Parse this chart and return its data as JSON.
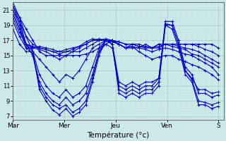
{
  "xlabel": "Température (°c)",
  "background_color": "#cce8e8",
  "grid_color_major": "#aacccc",
  "grid_color_minor": "#bbdddd",
  "line_color": "#0000cc",
  "marker": "+",
  "markersize": 3.5,
  "linewidth": 0.8,
  "ylim": [
    6.5,
    22.0
  ],
  "xlim": [
    0,
    4.1
  ],
  "yticks": [
    7,
    9,
    11,
    13,
    15,
    17,
    19,
    21
  ],
  "x_day_labels": [
    "Mar",
    "Mer",
    "Jeu",
    "Ven",
    "S"
  ],
  "x_day_positions": [
    0.0,
    1.0,
    2.0,
    3.0,
    4.0
  ],
  "series": [
    [
      21.5,
      20.0,
      18.5,
      17.0,
      15.5,
      15.0,
      15.0,
      15.0,
      15.0,
      15.0,
      15.0,
      15.2,
      15.5,
      16.0,
      16.5,
      17.0,
      16.5,
      16.0,
      16.0,
      16.0,
      16.5,
      16.0,
      16.5,
      16.5,
      16.5,
      16.5,
      16.5,
      16.5,
      16.5,
      16.5,
      16.5,
      16.0
    ],
    [
      21.0,
      19.5,
      17.5,
      16.5,
      16.0,
      15.8,
      15.5,
      15.5,
      15.5,
      15.5,
      15.5,
      16.0,
      16.5,
      17.0,
      17.2,
      17.0,
      16.5,
      16.0,
      16.5,
      16.2,
      16.2,
      16.0,
      16.5,
      16.5,
      16.5,
      16.5,
      16.5,
      16.5,
      16.2,
      15.8,
      15.5,
      15.0
    ],
    [
      20.5,
      18.5,
      16.5,
      16.0,
      16.2,
      16.0,
      15.8,
      15.5,
      15.8,
      16.0,
      16.2,
      16.5,
      17.0,
      17.2,
      17.0,
      17.0,
      16.8,
      16.5,
      16.5,
      16.2,
      16.0,
      16.0,
      16.2,
      16.5,
      16.5,
      16.2,
      16.0,
      15.8,
      15.5,
      15.0,
      14.5,
      14.0
    ],
    [
      20.0,
      18.0,
      16.5,
      16.2,
      16.0,
      15.8,
      15.5,
      15.2,
      15.5,
      15.8,
      16.2,
      16.8,
      17.2,
      17.0,
      17.0,
      17.0,
      16.8,
      16.5,
      16.5,
      16.5,
      16.2,
      16.0,
      16.0,
      16.5,
      16.2,
      16.0,
      15.8,
      15.2,
      15.0,
      14.5,
      14.0,
      13.5
    ],
    [
      19.5,
      17.5,
      16.0,
      16.0,
      15.8,
      15.5,
      15.0,
      14.5,
      15.0,
      15.5,
      16.0,
      16.5,
      17.0,
      17.0,
      17.0,
      16.8,
      16.5,
      16.0,
      16.2,
      16.0,
      15.8,
      15.5,
      15.8,
      16.0,
      15.8,
      15.5,
      15.2,
      15.0,
      14.5,
      14.0,
      13.5,
      12.5
    ],
    [
      18.5,
      16.5,
      15.5,
      15.5,
      14.5,
      13.5,
      12.5,
      11.5,
      12.5,
      12.0,
      13.0,
      14.5,
      16.0,
      16.5,
      17.0,
      16.8,
      16.5,
      16.0,
      16.2,
      15.5,
      15.0,
      14.5,
      14.8,
      15.0,
      15.0,
      14.5,
      14.2,
      13.8,
      13.5,
      13.0,
      12.5,
      11.8
    ],
    [
      21.0,
      19.0,
      16.5,
      15.5,
      12.5,
      11.0,
      10.0,
      9.5,
      10.5,
      9.5,
      10.0,
      11.0,
      13.5,
      16.0,
      17.0,
      16.5,
      11.5,
      11.0,
      11.5,
      11.0,
      11.5,
      11.5,
      12.0,
      19.0,
      19.0,
      16.5,
      13.0,
      12.0,
      10.5,
      10.5,
      10.0,
      10.2
    ],
    [
      20.5,
      18.5,
      16.0,
      15.2,
      11.5,
      10.0,
      9.0,
      8.5,
      9.5,
      8.5,
      9.0,
      10.0,
      12.5,
      15.5,
      16.5,
      16.0,
      11.0,
      10.5,
      11.0,
      10.5,
      11.0,
      11.0,
      12.0,
      19.5,
      19.5,
      17.0,
      13.5,
      12.5,
      10.0,
      10.0,
      9.5,
      9.8
    ],
    [
      21.5,
      19.5,
      16.5,
      15.0,
      11.0,
      9.5,
      8.5,
      8.0,
      8.5,
      7.5,
      8.0,
      9.0,
      12.0,
      15.5,
      17.0,
      16.5,
      10.5,
      10.0,
      10.5,
      10.0,
      10.5,
      10.5,
      11.5,
      19.2,
      19.0,
      16.5,
      13.0,
      11.8,
      9.0,
      8.8,
      8.5,
      8.8
    ],
    [
      22.0,
      20.0,
      17.5,
      15.5,
      10.5,
      9.0,
      7.8,
      7.2,
      8.0,
      7.0,
      7.5,
      8.5,
      11.5,
      15.0,
      17.0,
      16.5,
      10.0,
      9.5,
      10.0,
      9.5,
      10.0,
      10.0,
      11.0,
      19.0,
      18.5,
      16.0,
      12.5,
      11.5,
      8.5,
      8.5,
      8.0,
      8.3
    ]
  ]
}
